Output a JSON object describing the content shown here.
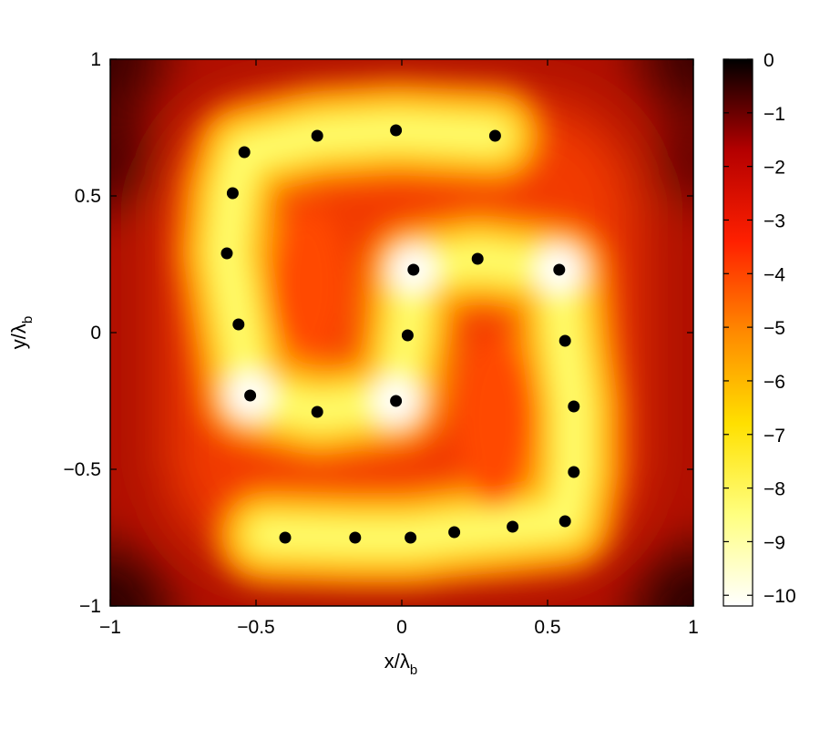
{
  "chart_data": {
    "type": "heatmap",
    "title": "",
    "xlabel": {
      "main": "x/λ",
      "sub": "b"
    },
    "ylabel": {
      "main": "y/λ",
      "sub": "b"
    },
    "xlim": [
      -1,
      1
    ],
    "ylim": [
      -1,
      1
    ],
    "x_ticks": [
      "−1",
      "−0.5",
      "0",
      "0.5",
      "1"
    ],
    "x_tick_values": [
      -1,
      -0.5,
      0,
      0.5,
      1
    ],
    "y_ticks": [
      "−1",
      "−0.5",
      "0",
      "0.5",
      "1"
    ],
    "y_tick_values": [
      -1,
      -0.5,
      0,
      0.5,
      1
    ],
    "colorbar": {
      "range": [
        -10.2,
        0
      ],
      "ticks": [
        "0",
        "−1",
        "−2",
        "−3",
        "−4",
        "−5",
        "−6",
        "−7",
        "−8",
        "−9",
        "−10"
      ],
      "tick_values": [
        0,
        -1,
        -2,
        -3,
        -4,
        -5,
        -6,
        -7,
        -8,
        -9,
        -10
      ],
      "colormap": "hot",
      "colors": [
        "#000000",
        "#b40000",
        "#ff2000",
        "#ff8a00",
        "#ffe000",
        "#ffff80",
        "#ffffff"
      ]
    },
    "grid": false,
    "points": [
      {
        "x": -0.54,
        "y": 0.66
      },
      {
        "x": -0.29,
        "y": 0.72
      },
      {
        "x": -0.02,
        "y": 0.74
      },
      {
        "x": 0.32,
        "y": 0.72
      },
      {
        "x": -0.58,
        "y": 0.51
      },
      {
        "x": -0.6,
        "y": 0.29
      },
      {
        "x": -0.56,
        "y": 0.03
      },
      {
        "x": -0.52,
        "y": -0.23
      },
      {
        "x": -0.29,
        "y": -0.29
      },
      {
        "x": -0.02,
        "y": -0.25
      },
      {
        "x": 0.02,
        "y": -0.01
      },
      {
        "x": 0.04,
        "y": 0.23
      },
      {
        "x": 0.26,
        "y": 0.27
      },
      {
        "x": 0.54,
        "y": 0.23
      },
      {
        "x": 0.56,
        "y": -0.03
      },
      {
        "x": 0.59,
        "y": -0.27
      },
      {
        "x": 0.59,
        "y": -0.51
      },
      {
        "x": 0.56,
        "y": -0.69
      },
      {
        "x": 0.38,
        "y": -0.71
      },
      {
        "x": 0.18,
        "y": -0.73
      },
      {
        "x": 0.03,
        "y": -0.75
      },
      {
        "x": -0.16,
        "y": -0.75
      },
      {
        "x": -0.4,
        "y": -0.75
      }
    ]
  }
}
